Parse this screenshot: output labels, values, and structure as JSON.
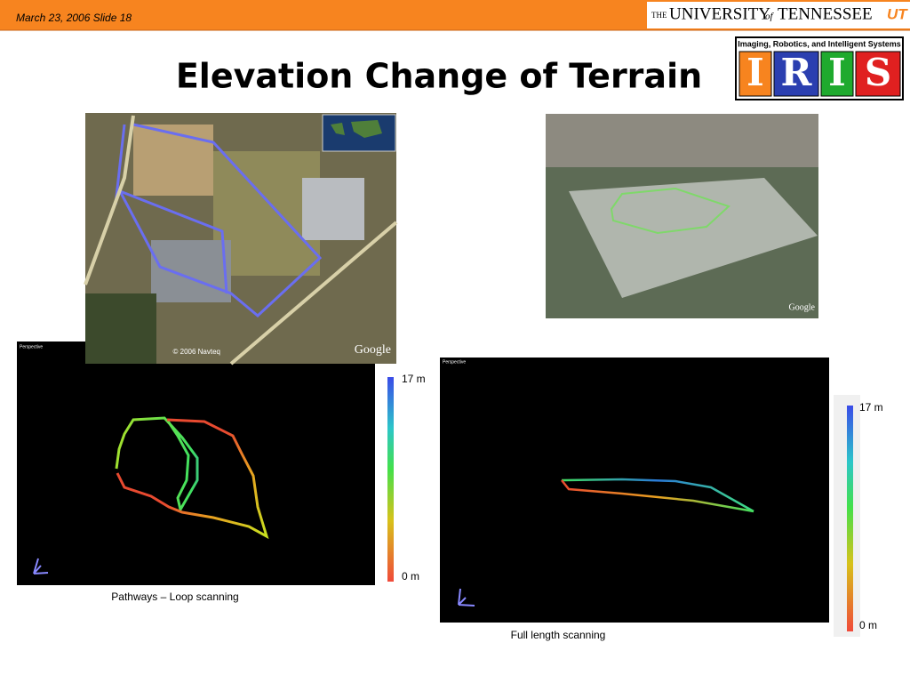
{
  "header": {
    "date": "March 23, 2006 Slide 18",
    "university": [
      "THE",
      "UNIVERSITY",
      "of",
      "TENNESSEE"
    ],
    "university_mark": "UT"
  },
  "logo": {
    "caption": "Imaging, Robotics, and Intelligent Systems",
    "letters": [
      "I",
      "R",
      "I",
      "S"
    ]
  },
  "title": "Elevation Change of Terrain",
  "satellite_image": {
    "credits": [
      "© 2006 Navteq",
      "Google"
    ]
  },
  "perspective_image": {
    "credits": [
      "Google"
    ]
  },
  "scans": [
    {
      "view_label": "Perspective",
      "scale_top": "17 m",
      "scale_bottom": "0 m",
      "caption": "Pathways – Loop scanning"
    },
    {
      "view_label": "Perspective",
      "scale_top": "17 m",
      "scale_bottom": "0 m",
      "caption": "Full length scanning"
    }
  ]
}
